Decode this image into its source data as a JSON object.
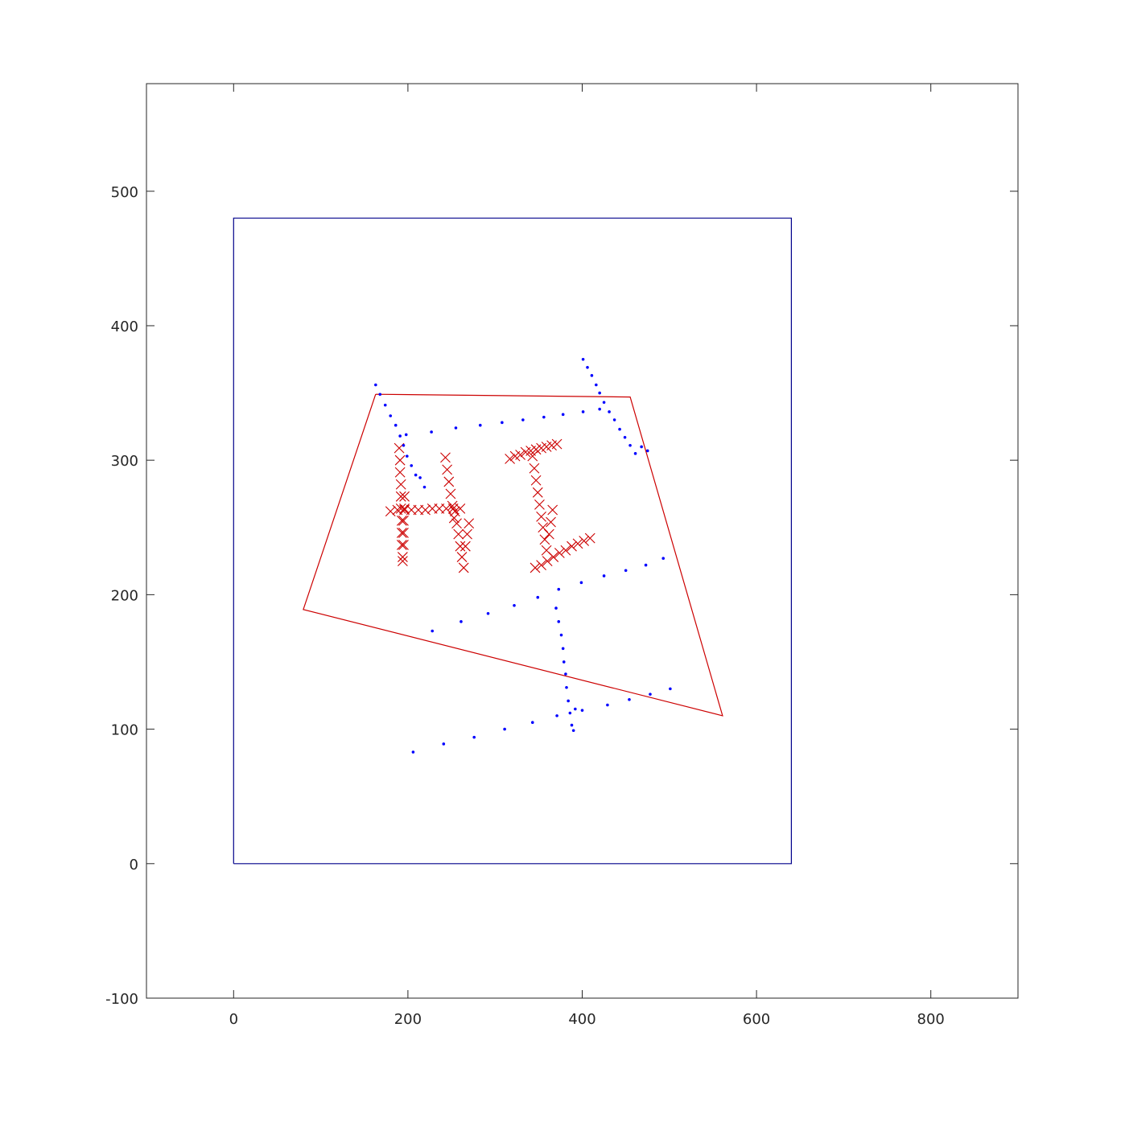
{
  "chart_data": {
    "type": "scatter",
    "title": "",
    "xlabel": "",
    "ylabel": "",
    "xlim": [
      -100,
      900
    ],
    "ylim": [
      -100,
      580
    ],
    "xticks": [
      0,
      200,
      400,
      600,
      800
    ],
    "yticks": [
      -100,
      0,
      100,
      200,
      300,
      400,
      500
    ],
    "grid": false,
    "legend": "none",
    "colors": {
      "blue": "#0000ff",
      "navy": "#00008b",
      "red": "#cc0000",
      "axis": "#262626"
    },
    "series": [
      {
        "type": "line",
        "color": "#00008b",
        "x": [
          0,
          640,
          640,
          0,
          0
        ],
        "y": [
          0,
          0,
          480,
          480,
          0
        ]
      },
      {
        "type": "line",
        "color": "#cc0000",
        "x": [
          163,
          455,
          561,
          80,
          163
        ],
        "y": [
          349,
          347,
          110,
          189,
          349
        ]
      },
      {
        "type": "scatter",
        "marker": "x",
        "color": "#cc0000",
        "x": [
          190,
          191,
          191,
          192,
          192,
          192,
          193,
          193,
          193,
          194,
          194,
          195,
          195,
          195,
          196,
          196,
          243,
          245,
          247,
          249,
          251,
          253,
          254,
          256,
          258,
          260,
          262,
          264,
          266,
          268,
          270,
          180,
          188,
          196,
          204,
          212,
          220,
          228,
          236,
          244,
          252,
          260,
          317,
          323,
          329,
          335,
          341,
          347,
          353,
          359,
          365,
          371,
          343,
          345,
          347,
          349,
          351,
          353,
          355,
          357,
          359,
          362,
          364,
          366,
          346,
          353,
          360,
          367,
          374,
          381,
          388,
          395,
          402,
          409
        ],
        "y": [
          309,
          300,
          291,
          282,
          273,
          264,
          255,
          246,
          237,
          228,
          225,
          237,
          246,
          255,
          264,
          273,
          302,
          293,
          284,
          275,
          266,
          257,
          262,
          253,
          245,
          236,
          228,
          220,
          236,
          245,
          253,
          262,
          263,
          263,
          263,
          263,
          263,
          264,
          264,
          264,
          264,
          264,
          301,
          303,
          304,
          306,
          307,
          308,
          309,
          310,
          311,
          312,
          303,
          294,
          285,
          276,
          267,
          258,
          250,
          241,
          233,
          245,
          254,
          263,
          220,
          222,
          225,
          228,
          231,
          233,
          236,
          238,
          240,
          242
        ]
      },
      {
        "type": "scatter",
        "marker": "dot",
        "color": "#0000ff",
        "x": [
          163,
          168,
          174,
          180,
          186,
          191,
          195,
          199,
          204,
          209,
          214,
          219,
          198,
          227,
          255,
          283,
          308,
          332,
          356,
          378,
          401,
          420,
          401,
          406,
          411,
          416,
          420,
          425,
          431,
          437,
          443,
          449,
          455,
          461,
          468,
          475,
          228,
          261,
          292,
          322,
          349,
          373,
          399,
          425,
          450,
          473,
          493,
          370,
          373,
          376,
          378,
          379,
          381,
          382,
          384,
          386,
          388,
          390,
          392,
          206,
          241,
          276,
          311,
          343,
          371,
          400,
          429,
          454,
          478,
          501
        ],
        "y": [
          356,
          349,
          341,
          333,
          326,
          318,
          311,
          303,
          296,
          289,
          287,
          280,
          319,
          321,
          324,
          326,
          328,
          330,
          332,
          334,
          336,
          338,
          375,
          369,
          363,
          356,
          350,
          343,
          336,
          330,
          323,
          317,
          311,
          305,
          310,
          307,
          173,
          180,
          186,
          192,
          198,
          204,
          209,
          214,
          218,
          222,
          227,
          190,
          180,
          170,
          160,
          150,
          141,
          131,
          121,
          112,
          103,
          99,
          115,
          83,
          89,
          94,
          100,
          105,
          110,
          114,
          118,
          122,
          126,
          130
        ]
      }
    ]
  }
}
